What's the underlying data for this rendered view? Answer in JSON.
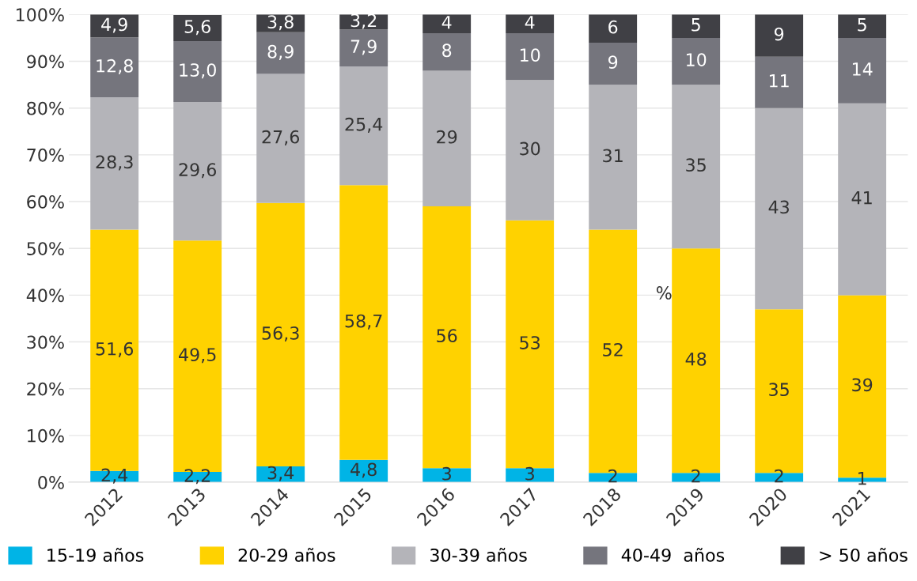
{
  "chart_data": {
    "type": "bar",
    "stacked": true,
    "categories": [
      "2012",
      "2013",
      "2014",
      "2015",
      "2016",
      "2017",
      "2018",
      "2019",
      "2020",
      "2021"
    ],
    "series": [
      {
        "name": "15-19 años",
        "color": "#00b4e6",
        "values": [
          2.4,
          2.2,
          3.4,
          4.8,
          3,
          3,
          2,
          2,
          2,
          1
        ],
        "value_labels": [
          "2,4",
          "2,2",
          "3,4",
          "4,8",
          "3",
          "3",
          "2",
          "2",
          "2",
          "1"
        ]
      },
      {
        "name": "20-29 años",
        "color": "#ffd200",
        "values": [
          51.6,
          49.5,
          56.3,
          58.7,
          56,
          53,
          52,
          48,
          35,
          39
        ],
        "value_labels": [
          "51,6",
          "49,5",
          "56,3",
          "58,7",
          "56",
          "53",
          "52",
          "48",
          "35",
          "39"
        ]
      },
      {
        "name": "30-39 años",
        "color": "#b4b4b9",
        "values": [
          28.3,
          29.6,
          27.6,
          25.4,
          29,
          30,
          31,
          35,
          43,
          41
        ],
        "value_labels": [
          "28,3",
          "29,6",
          "27,6",
          "25,4",
          "29",
          "30",
          "31",
          "35",
          "43",
          "41"
        ]
      },
      {
        "name": "40-49  años",
        "color": "#75757d",
        "values": [
          12.8,
          13.0,
          8.9,
          7.9,
          8,
          10,
          9,
          10,
          11,
          14
        ],
        "value_labels": [
          "12,8",
          "13,0",
          "8,9",
          "7,9",
          "8",
          "10",
          "9",
          "10",
          "11",
          "14"
        ]
      },
      {
        "name": "> 50 años",
        "color": "#404045",
        "values": [
          4.9,
          5.6,
          3.8,
          3.2,
          4,
          4,
          6,
          5,
          9,
          5
        ],
        "value_labels": [
          "4,9",
          "5,6",
          "3,8",
          "3,2",
          "4",
          "4",
          "6",
          "5",
          "9",
          "5"
        ]
      }
    ],
    "ylim": [
      0,
      100
    ],
    "yticks": [
      {
        "value": 0,
        "label": "0%"
      },
      {
        "value": 10,
        "label": "10%"
      },
      {
        "value": 20,
        "label": "20%"
      },
      {
        "value": 30,
        "label": "30%"
      },
      {
        "value": 40,
        "label": "40%"
      },
      {
        "value": 50,
        "label": "50%"
      },
      {
        "value": 60,
        "label": "60%"
      },
      {
        "value": 70,
        "label": "70%"
      },
      {
        "value": 80,
        "label": "80%"
      },
      {
        "value": 90,
        "label": "90%"
      },
      {
        "value": 100,
        "label": "100%"
      }
    ],
    "grid": "y",
    "legend": "bottom",
    "annotations": [
      "%"
    ]
  }
}
